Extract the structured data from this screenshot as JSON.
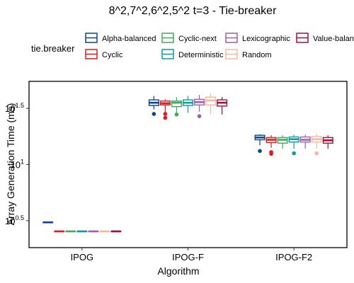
{
  "chart_data": {
    "type": "boxplot",
    "title": "8^2,7^2,6^2,5^2 t=3 - Tie-breaker",
    "xlabel": "Algorithm",
    "ylabel": "Array Generation Time (ms)",
    "yscale": "log10",
    "ylim_log10": [
      0.26,
      1.74
    ],
    "yticks": [
      {
        "log10": 0.5,
        "base": "10",
        "exp": "0.5"
      },
      {
        "log10": 1.0,
        "base": "10",
        "exp": "1"
      },
      {
        "log10": 1.5,
        "base": "10",
        "exp": "1.5"
      }
    ],
    "categories": [
      "IPOG",
      "IPOG-F",
      "IPOG-F2"
    ],
    "legend": {
      "title": "tie.breaker",
      "position": "top",
      "entries": [
        "Alpha-balanced",
        "Cyclic",
        "Cyclic-next",
        "Deterministic",
        "Lexicographic",
        "Random",
        "Value-balanced"
      ]
    },
    "series": [
      {
        "name": "Alpha-balanced",
        "color": "#084594",
        "stats": [
          [
            0.485,
            0.485,
            0.485,
            0.485,
            0.485,
            []
          ],
          [
            1.49,
            1.525,
            1.55,
            1.575,
            1.61,
            [
              1.45
            ]
          ],
          [
            1.17,
            1.22,
            1.24,
            1.26,
            1.27,
            [
              1.12
            ]
          ]
        ]
      },
      {
        "name": "Cyclic",
        "color": "#e31a1c",
        "stats": [
          [
            0.405,
            0.405,
            0.405,
            0.405,
            0.405,
            []
          ],
          [
            1.46,
            1.53,
            1.545,
            1.565,
            1.58,
            [
              1.45,
              1.415
            ]
          ],
          [
            1.15,
            1.195,
            1.22,
            1.24,
            1.26,
            [
              1.11,
              1.095
            ]
          ]
        ]
      },
      {
        "name": "Cyclic-next",
        "color": "#41ab5d",
        "stats": [
          [
            0.405,
            0.405,
            0.405,
            0.405,
            0.405,
            []
          ],
          [
            1.46,
            1.515,
            1.55,
            1.565,
            1.6,
            [
              1.445
            ]
          ],
          [
            1.14,
            1.19,
            1.22,
            1.24,
            1.26,
            []
          ]
        ]
      },
      {
        "name": "Deterministic",
        "color": "#0e9aa7",
        "stats": [
          [
            0.405,
            0.405,
            0.405,
            0.405,
            0.405,
            []
          ],
          [
            1.46,
            1.525,
            1.55,
            1.575,
            1.61,
            []
          ],
          [
            1.14,
            1.2,
            1.225,
            1.245,
            1.265,
            [
              1.1
            ]
          ]
        ]
      },
      {
        "name": "Lexicographic",
        "color": "#9e5fb5",
        "stats": [
          [
            0.405,
            0.405,
            0.405,
            0.405,
            0.405,
            []
          ],
          [
            1.47,
            1.53,
            1.555,
            1.58,
            1.62,
            [
              1.43
            ]
          ],
          [
            1.14,
            1.2,
            1.22,
            1.245,
            1.265,
            []
          ]
        ]
      },
      {
        "name": "Random",
        "color": "#f8b79c",
        "stats": [
          [
            0.405,
            0.405,
            0.405,
            0.405,
            0.405,
            []
          ],
          [
            1.45,
            1.53,
            1.57,
            1.6,
            1.63,
            []
          ],
          [
            1.14,
            1.2,
            1.225,
            1.25,
            1.27,
            [
              1.1
            ]
          ]
        ]
      },
      {
        "name": "Value-balanced",
        "color": "#a50f3a",
        "stats": [
          [
            0.405,
            0.405,
            0.405,
            0.405,
            0.405,
            []
          ],
          [
            1.445,
            1.52,
            1.55,
            1.575,
            1.6,
            []
          ],
          [
            1.14,
            1.19,
            1.215,
            1.24,
            1.26,
            []
          ]
        ]
      }
    ],
    "stats_format": [
      "lower_whisker",
      "q1",
      "median",
      "q3",
      "upper_whisker",
      "outliers"
    ]
  }
}
